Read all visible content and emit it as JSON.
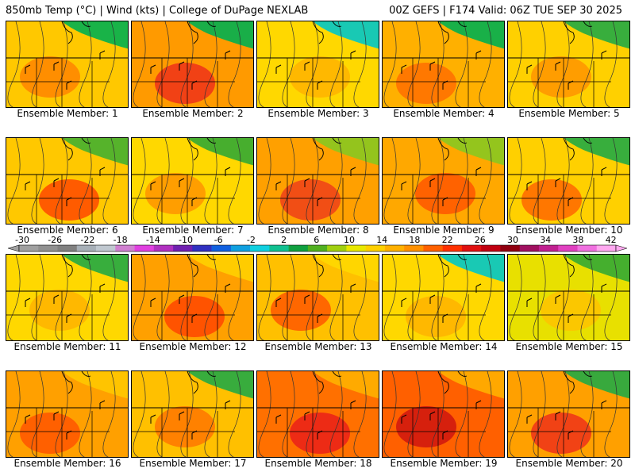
{
  "header": {
    "left": "850mb Temp (°C) | Wind (kts) | College of DuPage NEXLAB",
    "right": "00Z GEFS | F174 Valid: 06Z TUE SEP 30 2025"
  },
  "panels": [
    {
      "label": "Ensemble Member: 1",
      "base": "#ffc800",
      "hot": "#ff8000",
      "cool": "#00b050"
    },
    {
      "label": "Ensemble Member: 2",
      "base": "#ff9a00",
      "hot": "#ee2a1a",
      "cool": "#00b050"
    },
    {
      "label": "Ensemble Member: 3",
      "base": "#ffd800",
      "hot": "#ffb000",
      "cool": "#00c8c8"
    },
    {
      "label": "Ensemble Member: 4",
      "base": "#ffb000",
      "hot": "#ff6a00",
      "cool": "#00b050"
    },
    {
      "label": "Ensemble Member: 5",
      "base": "#ffd000",
      "hot": "#ff9000",
      "cool": "#22aa44"
    },
    {
      "label": "Ensemble Member: 6",
      "base": "#ffc800",
      "hot": "#ff4000",
      "cool": "#44b030"
    },
    {
      "label": "Ensemble Member: 7",
      "base": "#ffd800",
      "hot": "#ff9000",
      "cool": "#33aa33"
    },
    {
      "label": "Ensemble Member: 8",
      "base": "#ffa000",
      "hot": "#ee3a1a",
      "cool": "#88c820"
    },
    {
      "label": "Ensemble Member: 9",
      "base": "#ffa800",
      "hot": "#ff5000",
      "cool": "#88c820"
    },
    {
      "label": "Ensemble Member: 10",
      "base": "#ffd000",
      "hot": "#ff6000",
      "cool": "#22aa44"
    },
    {
      "label": "Ensemble Member: 11",
      "base": "#ffd800",
      "hot": "#ffb000",
      "cool": "#22aa44"
    },
    {
      "label": "Ensemble Member: 12",
      "base": "#ffa000",
      "hot": "#ff4000",
      "cool": "#ffd000"
    },
    {
      "label": "Ensemble Member: 13",
      "base": "#ffc000",
      "hot": "#ff5000",
      "cool": "#ffd800"
    },
    {
      "label": "Ensemble Member: 14",
      "base": "#ffd800",
      "hot": "#ffb000",
      "cool": "#00c8c8"
    },
    {
      "label": "Ensemble Member: 15",
      "base": "#e8e000",
      "hot": "#ffc000",
      "cool": "#33aa33"
    },
    {
      "label": "Ensemble Member: 16",
      "base": "#ffa000",
      "hot": "#ff5000",
      "cool": "#ffc800"
    },
    {
      "label": "Ensemble Member: 17",
      "base": "#ffc000",
      "hot": "#ff7000",
      "cool": "#22aa44"
    },
    {
      "label": "Ensemble Member: 18",
      "base": "#ff7000",
      "hot": "#e81a1a",
      "cool": "#ffb000"
    },
    {
      "label": "Ensemble Member: 19",
      "base": "#ff6000",
      "hot": "#cc1010",
      "cool": "#ffb000"
    },
    {
      "label": "Ensemble Member: 20",
      "base": "#ffa000",
      "hot": "#ee2a1a",
      "cool": "#22aa44"
    }
  ],
  "colorbar": {
    "labels": [
      "-30",
      "-26",
      "-22",
      "-18",
      "-14",
      "-10",
      "-6",
      "-2",
      "2",
      "6",
      "10",
      "14",
      "18",
      "22",
      "26",
      "30",
      "34",
      "38",
      "42"
    ],
    "colors": [
      "#a0a0a0",
      "#909090",
      "#808080",
      "#a8b0b8",
      "#c0c8d0",
      "#d080d0",
      "#e040e0",
      "#b030c0",
      "#7020b0",
      "#3030c0",
      "#1060e0",
      "#10a0e0",
      "#10d0e0",
      "#10c090",
      "#10a040",
      "#50b020",
      "#a0d010",
      "#e8e800",
      "#ffd000",
      "#ffb000",
      "#ff9000",
      "#ff6000",
      "#ff3000",
      "#e01010",
      "#c00010",
      "#900010",
      "#a01060",
      "#c02090",
      "#e040c0",
      "#f070e0",
      "#ffa8f0"
    ]
  }
}
